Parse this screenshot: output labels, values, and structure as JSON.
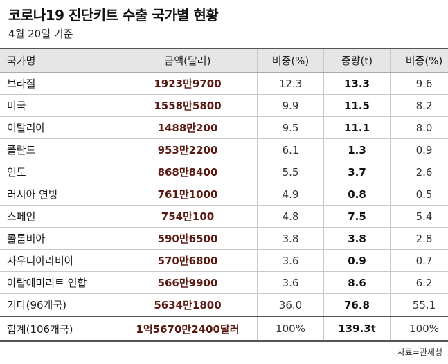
{
  "title": "코로나19 진단키트 수출 국가별 현황",
  "subtitle": "4월 20일 기준",
  "headers": {
    "country": "국가명",
    "amount": "금액(달러)",
    "ratio1": "비중(%)",
    "weight": "중량(t)",
    "ratio2": "비중(%)"
  },
  "rows": [
    {
      "country": "브라질",
      "amount": "1923만9700",
      "ratio1": "12.3",
      "weight": "13.3",
      "ratio2": "9.6"
    },
    {
      "country": "미국",
      "amount": "1558만5800",
      "ratio1": "9.9",
      "weight": "11.5",
      "ratio2": "8.2"
    },
    {
      "country": "이탈리아",
      "amount": "1488만200",
      "ratio1": "9.5",
      "weight": "11.1",
      "ratio2": "8.0"
    },
    {
      "country": "폴란드",
      "amount": "953만2200",
      "ratio1": "6.1",
      "weight": "1.3",
      "ratio2": "0.9"
    },
    {
      "country": "인도",
      "amount": "868만8400",
      "ratio1": "5.5",
      "weight": "3.7",
      "ratio2": "2.6"
    },
    {
      "country": "러시아 연방",
      "amount": "761만1000",
      "ratio1": "4.9",
      "weight": "0.8",
      "ratio2": "0.5"
    },
    {
      "country": "스페인",
      "amount": "754만100",
      "ratio1": "4.8",
      "weight": "7.5",
      "ratio2": "5.4"
    },
    {
      "country": "콜롬비아",
      "amount": "590만6500",
      "ratio1": "3.8",
      "weight": "3.8",
      "ratio2": "2.8"
    },
    {
      "country": "사우디아라비아",
      "amount": "570만6800",
      "ratio1": "3.6",
      "weight": "0.9",
      "ratio2": "0.7"
    },
    {
      "country": "아랍에미리트 연합",
      "amount": "566만9900",
      "ratio1": "3.6",
      "weight": "8.6",
      "ratio2": "6.2"
    },
    {
      "country": "기타(96개국)",
      "amount": "5634만1800",
      "ratio1": "36.0",
      "weight": "76.8",
      "ratio2": "55.1"
    }
  ],
  "total": {
    "country": "합계(106개국)",
    "amount": "1억5670만2400달러",
    "ratio1": "100%",
    "weight": "139.3t",
    "ratio2": "100%"
  },
  "source": "자료=관세청",
  "colors": {
    "amount_text": "#5a1a12",
    "header_bg": "#e6e6e6"
  }
}
